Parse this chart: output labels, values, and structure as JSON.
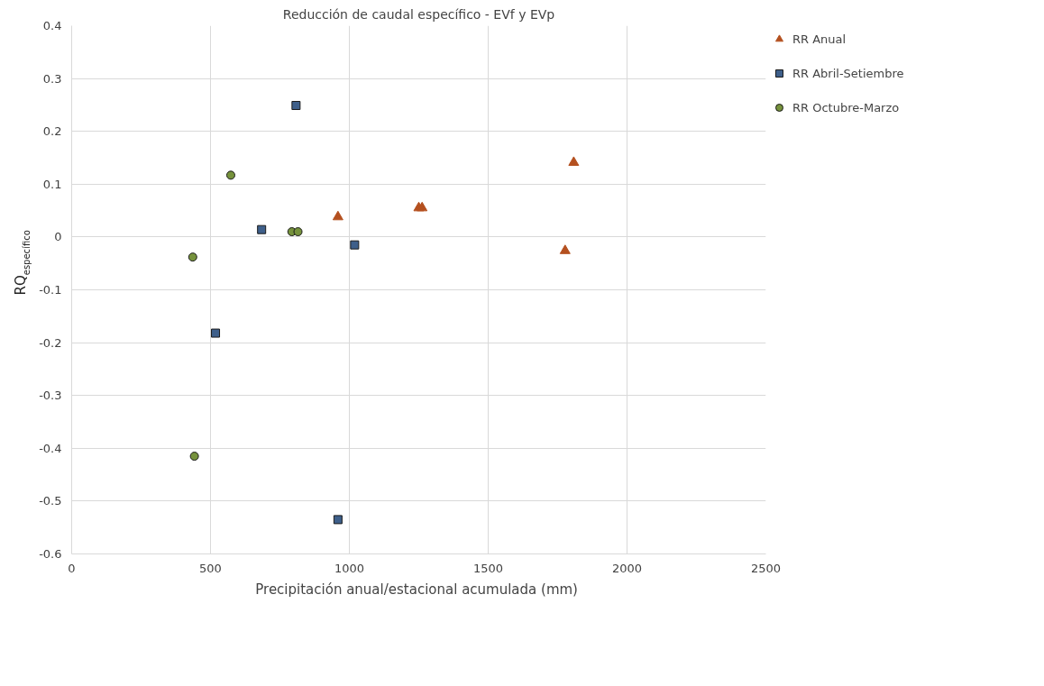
{
  "chart_data": {
    "type": "scatter",
    "title": "Reducción de caudal específico - EVf y EVp",
    "xlabel": "Precipitación anual/estacional  acumulada (mm)",
    "ylabel": "RQ$_{específico}$",
    "xlim": [
      0,
      2500
    ],
    "ylim": [
      -0.6,
      0.4
    ],
    "xticks": [
      0,
      500,
      1000,
      1500,
      2000,
      2500
    ],
    "yticks": [
      -0.6,
      -0.5,
      -0.4,
      -0.3,
      -0.2,
      -0.1,
      0,
      0.1,
      0.2,
      0.3,
      0.4
    ],
    "grid": true,
    "legend": "right",
    "series": [
      {
        "name": "RR Anual",
        "color": "#b4501f",
        "marker": "triangle",
        "x": [
          959,
          1250,
          1262,
          1808,
          1777
        ],
        "values": [
          0.038,
          0.055,
          0.055,
          0.141,
          -0.026
        ]
      },
      {
        "name": "RR Abril-Setiembre",
        "color": "#3e5f8a",
        "marker": "square",
        "x": [
          808,
          684,
          1019,
          518,
          959
        ],
        "values": [
          0.249,
          0.014,
          -0.015,
          -0.182,
          -0.535
        ]
      },
      {
        "name": "RR Octubre-Marzo",
        "color": "#76923c",
        "marker": "circle",
        "x": [
          573,
          793,
          815,
          436,
          442
        ],
        "values": [
          0.117,
          0.01,
          0.01,
          -0.038,
          -0.415
        ]
      }
    ]
  }
}
